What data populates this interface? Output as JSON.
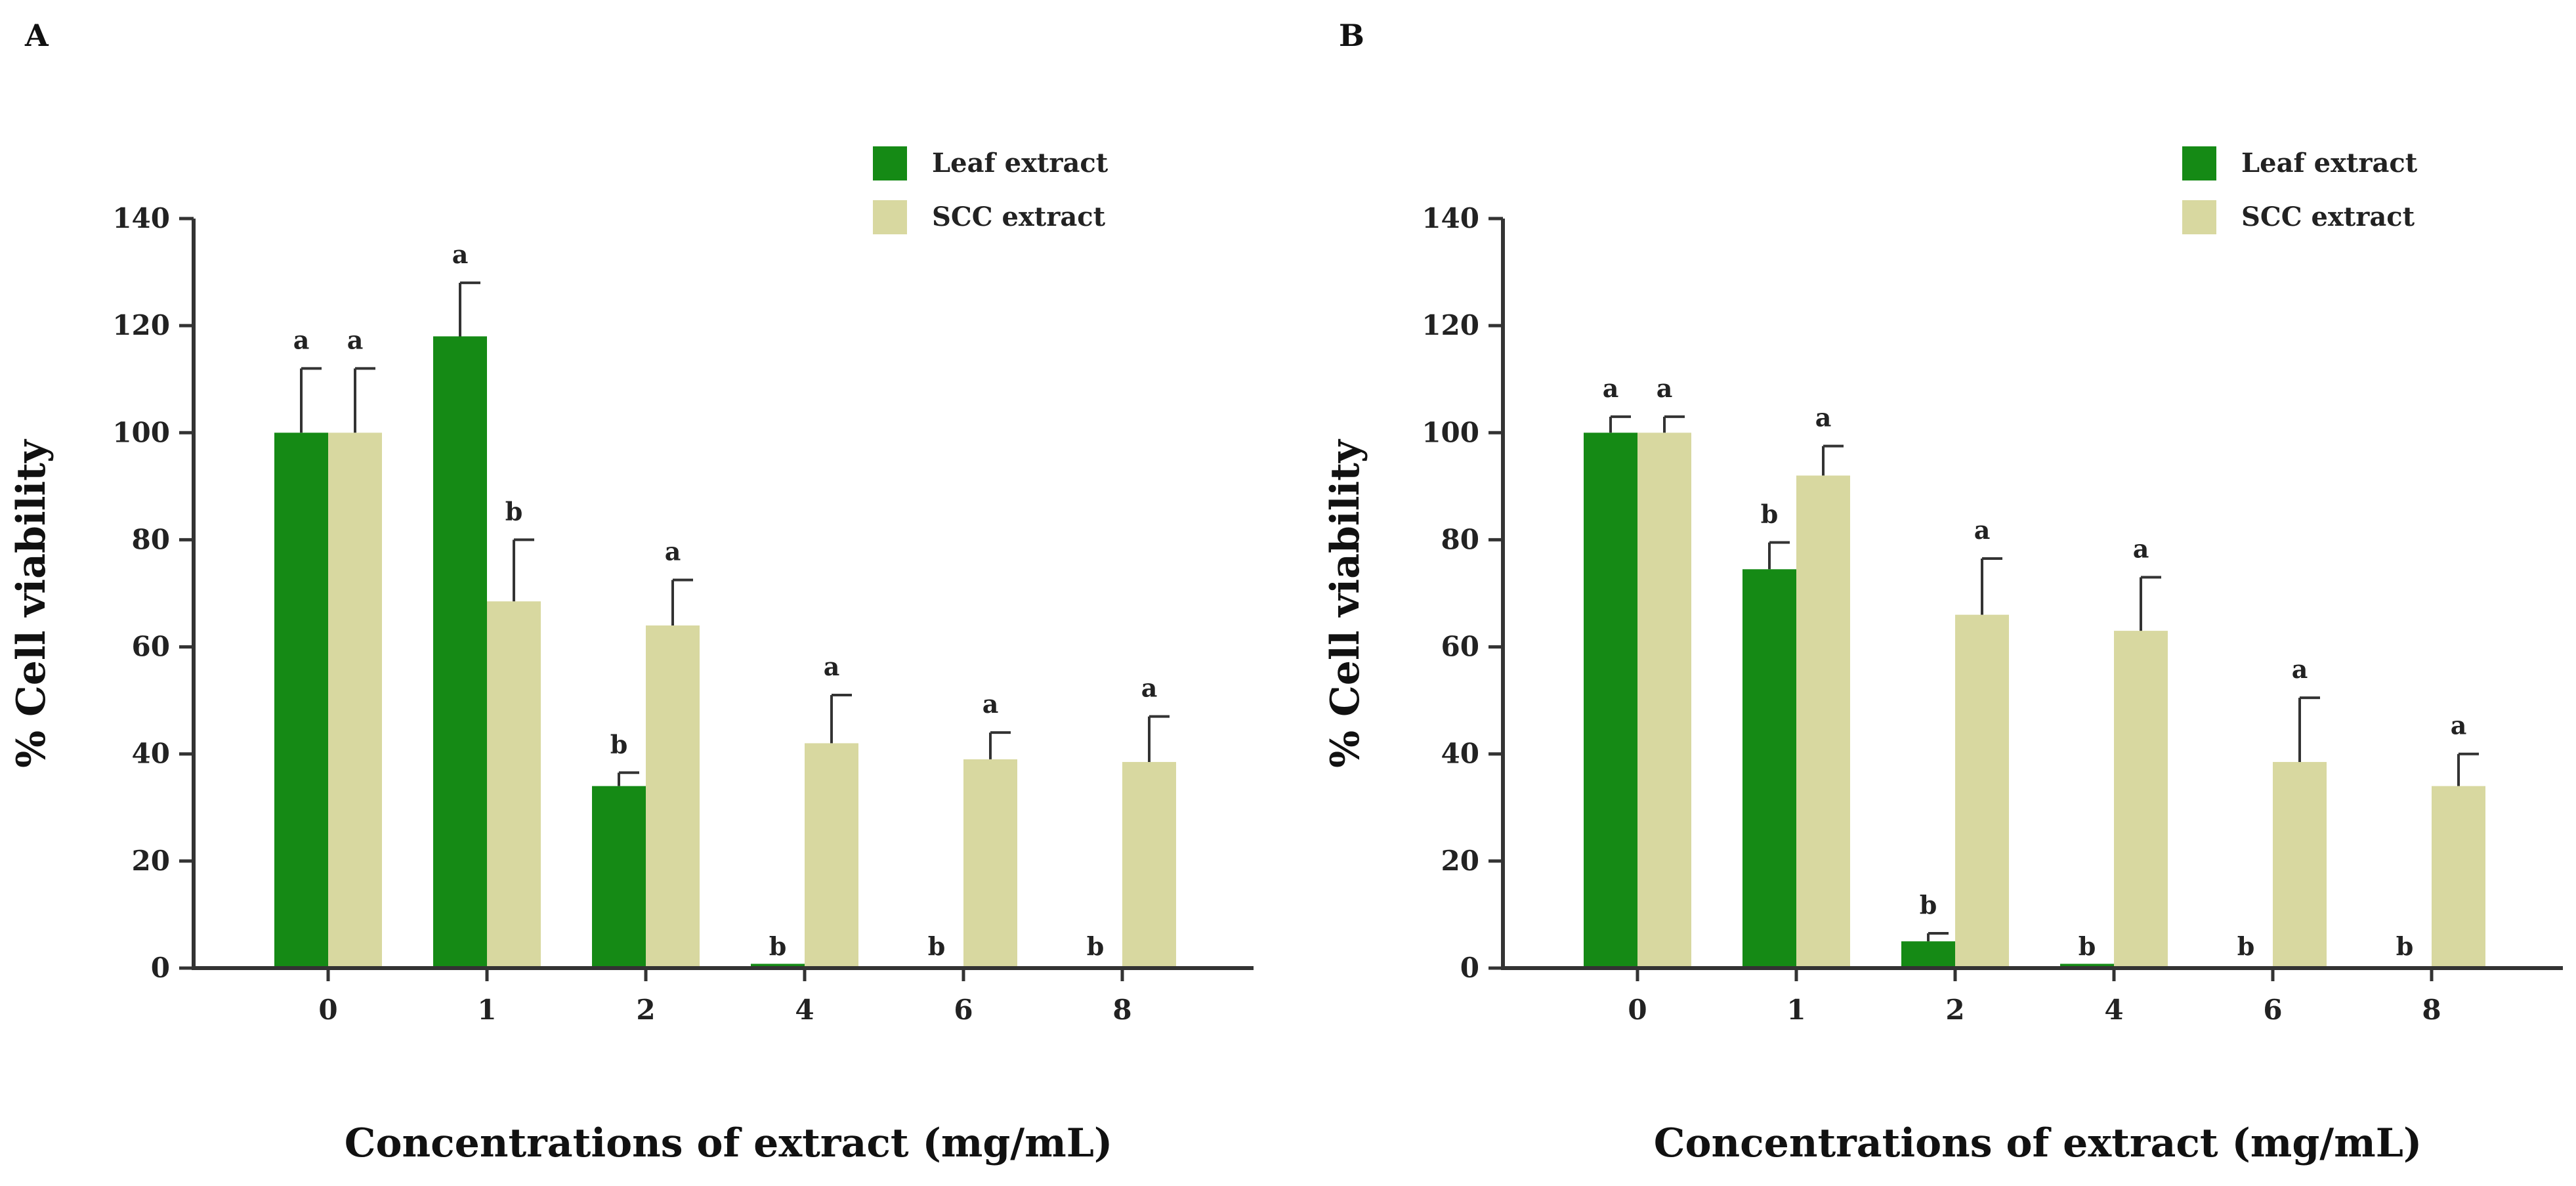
{
  "chart_data": [
    {
      "panel": "A",
      "type": "bar",
      "categories": [
        "0",
        "1",
        "2",
        "4",
        "6",
        "8"
      ],
      "ylim": [
        0,
        140
      ],
      "yticks": [
        "0",
        "20",
        "40",
        "60",
        "80",
        "100",
        "120",
        "140"
      ],
      "xlabel": "Concentrations of extract (mg/mL)",
      "ylabel": "% Cell viability",
      "legend_position": "top-right",
      "series": [
        {
          "name": "Leaf extract",
          "color": "#158a15",
          "values": [
            100,
            118,
            34,
            0.8,
            0,
            0
          ],
          "errors": [
            12,
            10,
            2.5,
            0,
            0,
            0
          ],
          "labels": [
            "a",
            "a",
            "b",
            "b",
            "b",
            "b"
          ]
        },
        {
          "name": "SCC extract",
          "color": "#d8d8a0",
          "values": [
            100,
            68.5,
            64,
            42,
            39,
            38.5
          ],
          "errors": [
            12,
            11.5,
            8.5,
            9,
            5,
            8.5
          ],
          "labels": [
            "a",
            "b",
            "a",
            "a",
            "a",
            "a"
          ]
        }
      ]
    },
    {
      "panel": "B",
      "type": "bar",
      "categories": [
        "0",
        "1",
        "2",
        "4",
        "6",
        "8"
      ],
      "ylim": [
        0,
        140
      ],
      "yticks": [
        "0",
        "20",
        "40",
        "60",
        "80",
        "100",
        "120",
        "140"
      ],
      "xlabel": "Concentrations of extract (mg/mL)",
      "ylabel": "% Cell viability",
      "legend_position": "top-right",
      "series": [
        {
          "name": "Leaf extract",
          "color": "#158a15",
          "values": [
            100,
            74.5,
            5,
            0.8,
            0,
            0
          ],
          "errors": [
            3,
            5,
            1.5,
            0,
            0,
            0
          ],
          "labels": [
            "a",
            "b",
            "b",
            "b",
            "b",
            "b"
          ]
        },
        {
          "name": "SCC extract",
          "color": "#d8d8a0",
          "values": [
            100,
            92,
            66,
            63,
            38.5,
            34
          ],
          "errors": [
            3,
            5.5,
            10.5,
            10,
            12,
            6
          ],
          "labels": [
            "a",
            "a",
            "a",
            "a",
            "a",
            "a"
          ]
        }
      ]
    }
  ]
}
